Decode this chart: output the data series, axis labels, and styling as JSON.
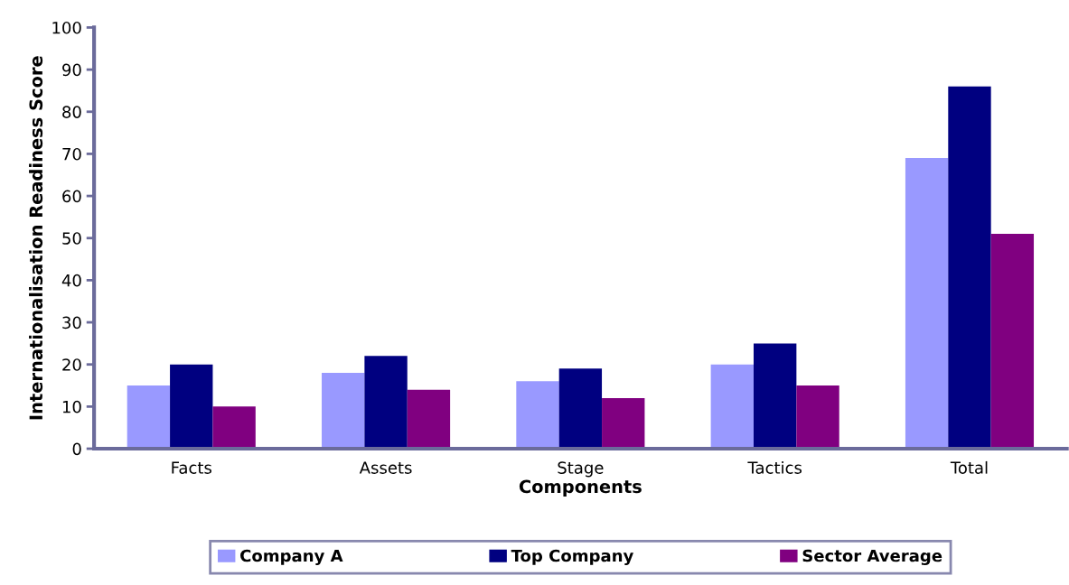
{
  "chart_data": {
    "type": "bar",
    "xlabel": "Components",
    "ylabel": "Internationalisation Readiness Score",
    "categories": [
      "Facts",
      "Assets",
      "Stage",
      "Tactics",
      "Total"
    ],
    "series": [
      {
        "name": "Company A",
        "color": "#9999ff",
        "values": [
          15,
          18,
          16,
          20,
          69
        ]
      },
      {
        "name": "Top Company",
        "color": "#000080",
        "values": [
          20,
          22,
          19,
          25,
          86
        ]
      },
      {
        "name": "Sector Average",
        "color": "#800080",
        "values": [
          10,
          14,
          12,
          15,
          51
        ]
      }
    ],
    "ylim": [
      0,
      100
    ],
    "yticks": [
      0,
      10,
      20,
      30,
      40,
      50,
      60,
      70,
      80,
      90,
      100
    ],
    "grid": false,
    "legend": "bottom"
  }
}
